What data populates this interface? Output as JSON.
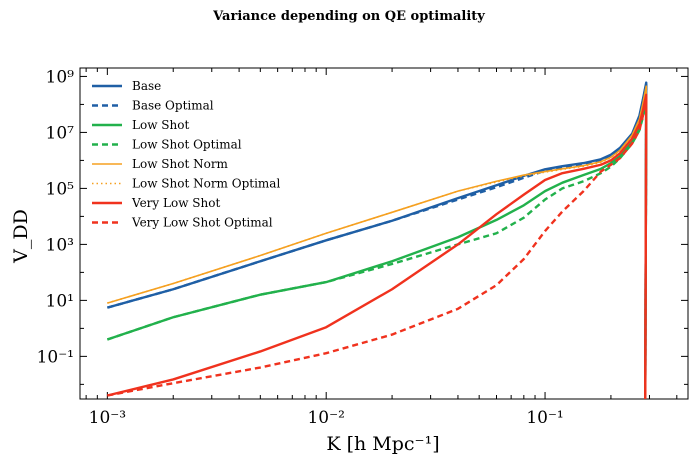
{
  "chart_data": {
    "type": "line",
    "title": "Variance depending on QE optimality",
    "xlabel": "K [h Mpc⁻¹]",
    "ylabel": "V_DD",
    "xscale": "log",
    "yscale": "log",
    "xlim": [
      0.00075,
      0.45
    ],
    "ylim": [
      0.003,
      2000000000
    ],
    "x_ticks": [
      0.001,
      0.01,
      0.1
    ],
    "x_tick_labels": [
      "10⁻³",
      "10⁻²",
      "10⁻¹"
    ],
    "y_ticks": [
      0.1,
      10,
      1000,
      100000,
      10000000,
      1000000000
    ],
    "y_tick_labels": [
      "10⁻¹",
      "10¹",
      "10³",
      "10⁵",
      "10⁷",
      "10⁹"
    ],
    "legend_position": "top-left",
    "x": [
      0.001,
      0.002,
      0.005,
      0.01,
      0.02,
      0.04,
      0.06,
      0.08,
      0.1,
      0.12,
      0.15,
      0.18,
      0.2,
      0.22,
      0.25,
      0.27,
      0.28,
      0.29
    ],
    "series": [
      {
        "name": "Base",
        "color": "#1f5fa5",
        "dash": "solid",
        "width": 2.4,
        "values": [
          5.5,
          25,
          250,
          1400,
          7000,
          45000,
          130000,
          280000,
          480000,
          620000,
          800000,
          1100000,
          1600000,
          2800000,
          9000000,
          40000000,
          150000000,
          600000000
        ]
      },
      {
        "name": "Base Optimal",
        "color": "#1f5fa5",
        "dash": "dashed",
        "width": 2.4,
        "values": [
          5.5,
          25,
          250,
          1400,
          7000,
          40000,
          110000,
          240000,
          430000,
          570000,
          750000,
          1050000,
          1500000,
          2600000,
          8500000,
          35000000,
          140000000,
          550000000
        ]
      },
      {
        "name": "Low Shot",
        "color": "#22b14c",
        "dash": "solid",
        "width": 2.4,
        "values": [
          0.4,
          2.5,
          16,
          45,
          250,
          1800,
          7500,
          25000,
          80000,
          160000,
          300000,
          500000,
          800000,
          1400000,
          4500000,
          15000000,
          40000000,
          150000000
        ]
      },
      {
        "name": "Low Shot Optimal",
        "color": "#22b14c",
        "dash": "dashed",
        "width": 2.4,
        "values": [
          0.4,
          2.5,
          16,
          45,
          200,
          1000,
          2500,
          9000,
          40000,
          100000,
          180000,
          350000,
          600000,
          1200000,
          4000000,
          12000000,
          35000000,
          120000000
        ]
      },
      {
        "name": "Low Shot Norm",
        "color": "#f5a020",
        "dash": "solid",
        "width": 1.6,
        "values": [
          8,
          40,
          400,
          2500,
          14000,
          80000,
          180000,
          300000,
          400000,
          500000,
          650000,
          900000,
          1300000,
          2300000,
          8000000,
          30000000,
          110000000,
          450000000
        ]
      },
      {
        "name": "Low Shot Norm Optimal",
        "color": "#f5a020",
        "dash": "dotted",
        "width": 1.6,
        "values": [
          8,
          40,
          400,
          2500,
          14000,
          80000,
          170000,
          280000,
          380000,
          480000,
          620000,
          850000,
          1250000,
          2200000,
          7500000,
          28000000,
          100000000,
          420000000
        ]
      },
      {
        "name": "Very Low Shot",
        "color": "#f0321e",
        "dash": "solid",
        "width": 2.4,
        "values": [
          0.004,
          0.015,
          0.15,
          1.1,
          25,
          1000,
          12000,
          60000,
          200000,
          350000,
          500000,
          700000,
          1000000,
          1800000,
          6000000,
          20000000,
          60000000,
          220000000
        ]
      },
      {
        "name": "Very Low Shot Optimal",
        "color": "#f0321e",
        "dash": "dashed",
        "width": 2.4,
        "values": [
          0.004,
          0.011,
          0.04,
          0.13,
          0.6,
          5,
          35,
          300,
          3000,
          15000,
          80000,
          400000,
          700000,
          1200000,
          4000000,
          12000000,
          40000000,
          150000000
        ]
      }
    ]
  }
}
